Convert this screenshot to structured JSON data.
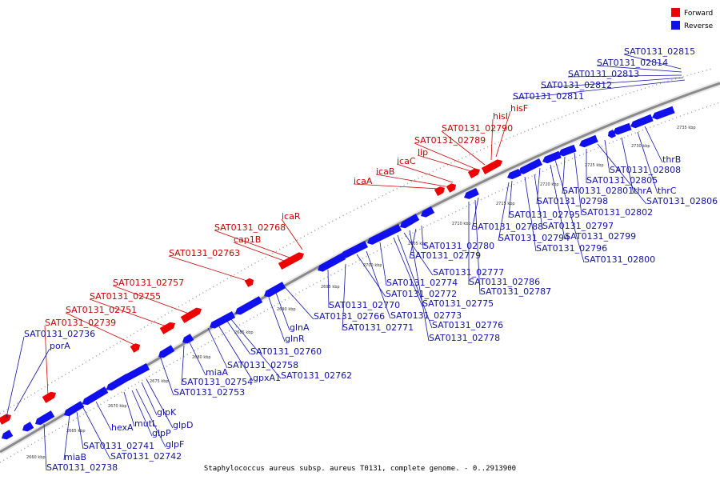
{
  "colors": {
    "forward": "#ee0000",
    "reverse": "#1010ee",
    "forward_text": "#cc0000",
    "reverse_text": "#1111aa",
    "backbone": "#8a8a8a"
  },
  "legend": {
    "forward": "Forward",
    "reverse": "Reverse"
  },
  "caption": "Staphylococcus aureus subsp. aureus T0131, complete genome. - 0..2913900",
  "ticks": [
    "2660 kbp",
    "2665 kbp",
    "2670 kbp",
    "2675 kbp",
    "2680 kbp",
    "2685 kbp",
    "2690 kbp",
    "2695 kbp",
    "2700 kbp",
    "2705 kbp",
    "2710 kbp",
    "2715 kbp",
    "2720 kbp",
    "2725 kbp",
    "2730 kbp",
    "2735 kbp"
  ],
  "forward_labels": [
    "SAT0131_02739",
    "SAT0131_02751",
    "SAT0131_02755",
    "SAT0131_02757",
    "SAT0131_02763",
    "cap1B",
    "SAT0131_02768",
    "icaR",
    "icaA",
    "icaB",
    "icaC",
    "lip",
    "SAT0131_02789",
    "SAT0131_02790",
    "hisI",
    "hisF"
  ],
  "reverse_labels_top": [
    "porA",
    "SAT0131_02736",
    "SAT0131_02811",
    "SAT0131_02812",
    "SAT0131_02813",
    "SAT0131_02814",
    "SAT0131_02815"
  ],
  "reverse_labels_bottom": [
    "SAT0131_02738",
    "miaB",
    "SAT0131_02741",
    "SAT0131_02742",
    "hexA",
    "mutL",
    "glpP",
    "glpF",
    "glpK",
    "glpD",
    "SAT0131_02753",
    "SAT0131_02754",
    "miaA",
    "SAT0131_02758",
    "gpxA1",
    "SAT0131_02760",
    "SAT0131_02762",
    "glnR",
    "glnA",
    "SAT0131_02766",
    "SAT0131_02770",
    "SAT0131_02771",
    "SAT0131_02772",
    "SAT0131_02773",
    "SAT0131_02774",
    "SAT0131_02775",
    "SAT0131_02776",
    "SAT0131_02777",
    "SAT0131_02778",
    "SAT0131_02779",
    "SAT0131_02780",
    "SAT0131_02786",
    "SAT0131_02787",
    "SAT0131_02788",
    "SAT0131_02794",
    "SAT0131_02795",
    "SAT0131_02796",
    "SAT0131_02797",
    "SAT0131_02798",
    "SAT0131_02799",
    "SAT0131_02800",
    "SAT0131_02801",
    "SAT0131_02802",
    "SAT0131_02805",
    "SAT0131_02806",
    "SAT0131_02808",
    "thrA",
    "thrB",
    "thrC"
  ]
}
